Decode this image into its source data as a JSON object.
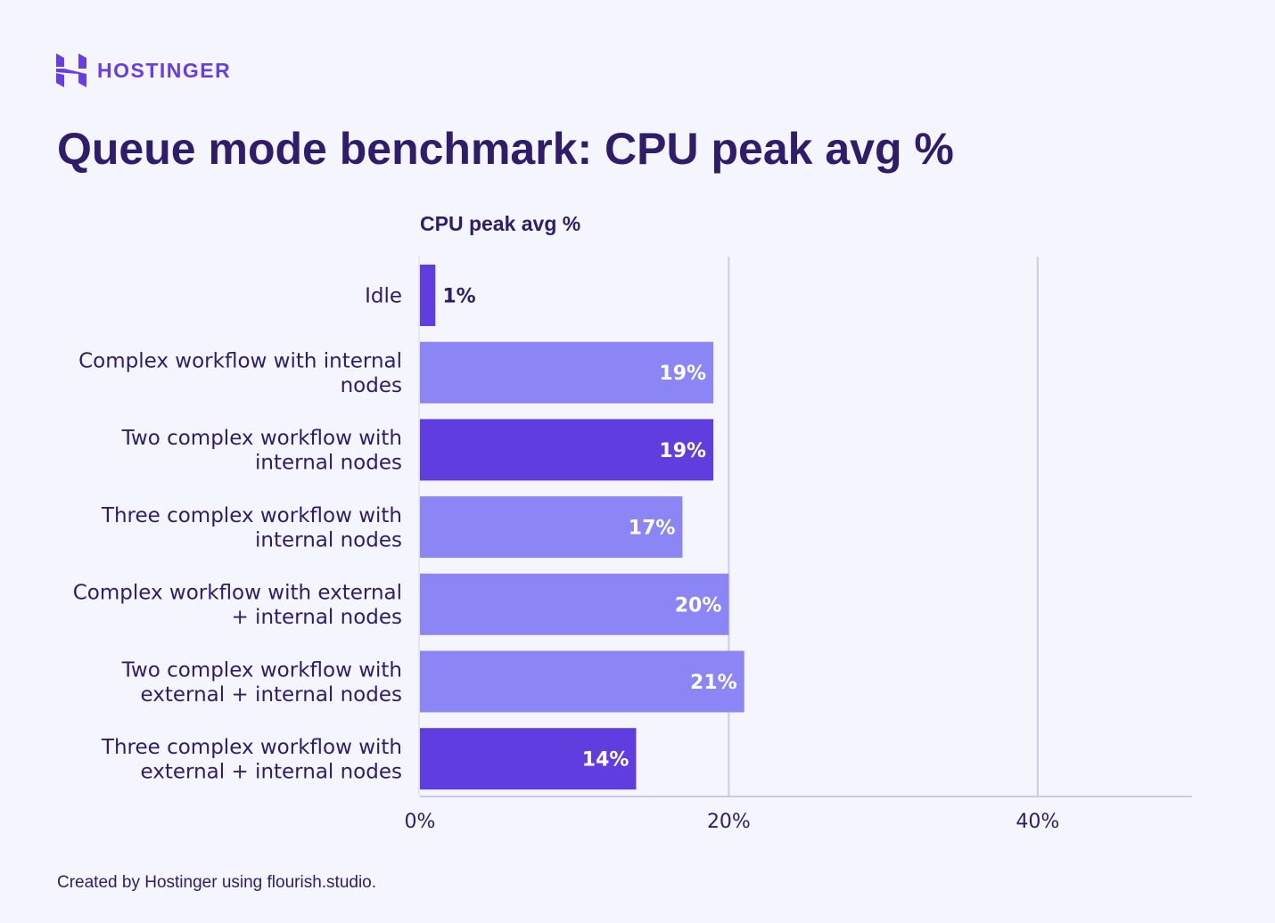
{
  "brand": {
    "name": "HOSTINGER",
    "color": "#673de6"
  },
  "title": "Queue mode benchmark: CPU peak avg %",
  "footer": "Created by Hostinger using flourish.studio.",
  "chart_data": {
    "type": "bar",
    "orientation": "horizontal",
    "title": "Queue mode benchmark: CPU peak avg %",
    "xlabel": "CPU peak avg %",
    "categories": [
      [
        "Idle"
      ],
      [
        "Complex workflow with internal",
        "nodes"
      ],
      [
        "Two complex workflow with",
        "internal nodes"
      ],
      [
        "Three complex workflow with",
        "internal nodes"
      ],
      [
        "Complex workflow with external",
        "+ internal nodes"
      ],
      [
        "Two complex workflow with",
        "external + internal nodes"
      ],
      [
        "Three complex workflow with",
        "external + internal nodes"
      ]
    ],
    "values": [
      1,
      19,
      19,
      17,
      20,
      21,
      14
    ],
    "data_labels": [
      "1%",
      "19%",
      "19%",
      "17%",
      "20%",
      "21%",
      "14%"
    ],
    "bar_colors": [
      "#5f3dde",
      "#8b85f6",
      "#5f3dde",
      "#8b85f6",
      "#8b85f6",
      "#8b85f6",
      "#5f3dde"
    ],
    "xlim": [
      0,
      50
    ],
    "xticks": [
      0,
      20,
      40
    ],
    "xtick_labels": [
      "0%",
      "20%",
      "40%"
    ],
    "grid": true
  }
}
